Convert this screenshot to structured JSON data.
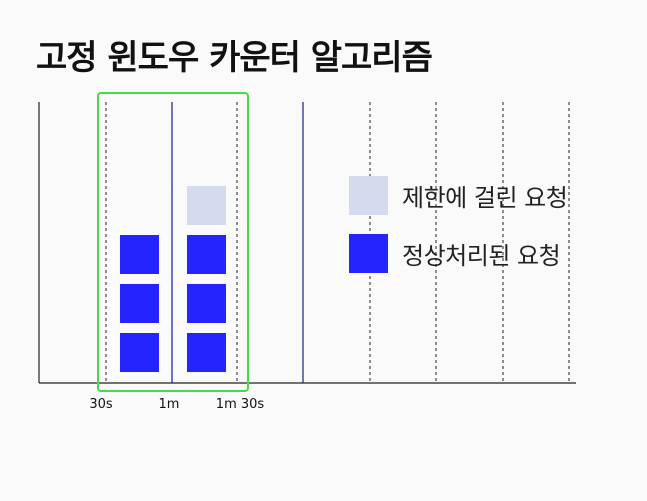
{
  "title": "고정 윈도우 카운터 알고리즘",
  "timeline": {
    "tick_labels": [
      "30s",
      "1m",
      "1m 30s"
    ]
  },
  "legend": {
    "items": [
      {
        "label": "제한에 걸린 요청",
        "color": "#d5dbef"
      },
      {
        "label": "정상처리된 요청",
        "color": "#2424ff"
      }
    ]
  },
  "colors": {
    "window_highlight": "#44dd44",
    "minute_line": "#1a1a8c",
    "half_line": "#222222",
    "axis": "#222222",
    "accepted": "#2424ff",
    "rejected": "#d5dbef"
  },
  "windows": [
    {
      "name": "window-30s-1m",
      "accepted": 3,
      "rejected": 0
    },
    {
      "name": "window-1m-1m30s",
      "accepted": 3,
      "rejected": 1
    }
  ]
}
